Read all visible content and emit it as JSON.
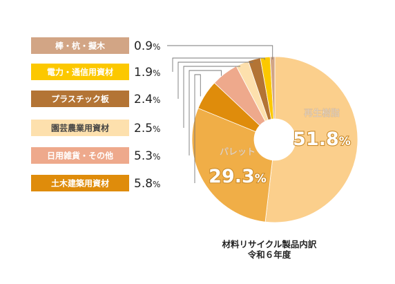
{
  "chart_data": {
    "type": "pie",
    "donut": true,
    "caption_line1": "材料リサイクル製品内訳",
    "caption_line2": "令和６年度",
    "slices": [
      {
        "label": "再生樹脂",
        "value": 51.8,
        "display": "51.8",
        "color": "#fbcf8c",
        "text_color": "#ffffff",
        "callout": false
      },
      {
        "label": "パレット",
        "value": 29.3,
        "display": "29.3",
        "color": "#f0ae47",
        "text_color": "#ffffff",
        "callout": false
      },
      {
        "label": "土木建築用資材",
        "value": 5.8,
        "display": "5.8",
        "color": "#df8c0b",
        "text_color": "#ffffff",
        "callout": true
      },
      {
        "label": "日用雑貨・その他",
        "value": 5.3,
        "display": "5.3",
        "color": "#eea98c",
        "text_color": "#ffffff",
        "callout": true
      },
      {
        "label": "園芸農業用資材",
        "value": 2.5,
        "display": "2.5",
        "color": "#fde0ad",
        "text_color": "#444444",
        "callout": true
      },
      {
        "label": "プラスチック板",
        "value": 2.4,
        "display": "2.4",
        "color": "#b37435",
        "text_color": "#ffffff",
        "callout": true
      },
      {
        "label": "電力・通信用資材",
        "value": 1.9,
        "display": "1.9",
        "color": "#fcc800",
        "text_color": "#ffffff",
        "callout": true
      },
      {
        "label": "棒・杭・擬木",
        "value": 0.9,
        "display": "0.9",
        "color": "#d2a585",
        "text_color": "#ffffff",
        "callout": true
      }
    ],
    "percent_sign": "%"
  }
}
